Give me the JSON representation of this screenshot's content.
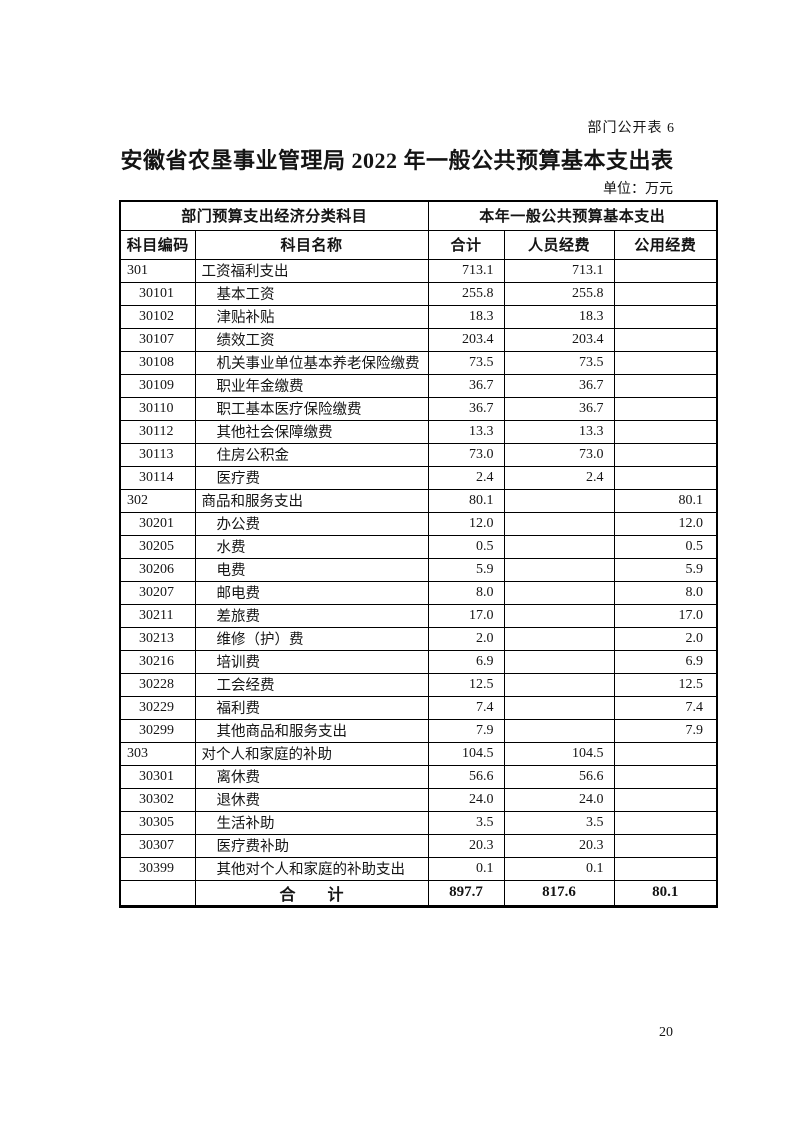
{
  "page": {
    "doc_label": "部门公开表 6",
    "title": "安徽省农垦事业管理局 2022 年一般公共预算基本支出表",
    "unit_label": "单位：万元",
    "page_number": "20"
  },
  "table": {
    "header": {
      "group_classification": "部门预算支出经济分类科目",
      "group_budget": "本年一般公共预算基本支出",
      "col_code": "科目编码",
      "col_name": "科目名称",
      "col_total": "合计",
      "col_personnel": "人员经费",
      "col_public": "公用经费"
    },
    "rows": [
      {
        "code": "301",
        "name": "工资福利支出",
        "total": "713.1",
        "personnel": "713.1",
        "public": "",
        "level": 1
      },
      {
        "code": "30101",
        "name": "基本工资",
        "total": "255.8",
        "personnel": "255.8",
        "public": "",
        "level": 2
      },
      {
        "code": "30102",
        "name": "津贴补贴",
        "total": "18.3",
        "personnel": "18.3",
        "public": "",
        "level": 2
      },
      {
        "code": "30107",
        "name": "绩效工资",
        "total": "203.4",
        "personnel": "203.4",
        "public": "",
        "level": 2
      },
      {
        "code": "30108",
        "name": "机关事业单位基本养老保险缴费",
        "total": "73.5",
        "personnel": "73.5",
        "public": "",
        "level": 2
      },
      {
        "code": "30109",
        "name": "职业年金缴费",
        "total": "36.7",
        "personnel": "36.7",
        "public": "",
        "level": 2
      },
      {
        "code": "30110",
        "name": "职工基本医疗保险缴费",
        "total": "36.7",
        "personnel": "36.7",
        "public": "",
        "level": 2
      },
      {
        "code": "30112",
        "name": "其他社会保障缴费",
        "total": "13.3",
        "personnel": "13.3",
        "public": "",
        "level": 2
      },
      {
        "code": "30113",
        "name": "住房公积金",
        "total": "73.0",
        "personnel": "73.0",
        "public": "",
        "level": 2
      },
      {
        "code": "30114",
        "name": "医疗费",
        "total": "2.4",
        "personnel": "2.4",
        "public": "",
        "level": 2
      },
      {
        "code": "302",
        "name": "商品和服务支出",
        "total": "80.1",
        "personnel": "",
        "public": "80.1",
        "level": 1
      },
      {
        "code": "30201",
        "name": "办公费",
        "total": "12.0",
        "personnel": "",
        "public": "12.0",
        "level": 2
      },
      {
        "code": "30205",
        "name": "水费",
        "total": "0.5",
        "personnel": "",
        "public": "0.5",
        "level": 2
      },
      {
        "code": "30206",
        "name": "电费",
        "total": "5.9",
        "personnel": "",
        "public": "5.9",
        "level": 2
      },
      {
        "code": "30207",
        "name": "邮电费",
        "total": "8.0",
        "personnel": "",
        "public": "8.0",
        "level": 2
      },
      {
        "code": "30211",
        "name": "差旅费",
        "total": "17.0",
        "personnel": "",
        "public": "17.0",
        "level": 2
      },
      {
        "code": "30213",
        "name": "维修（护）费",
        "total": "2.0",
        "personnel": "",
        "public": "2.0",
        "level": 2
      },
      {
        "code": "30216",
        "name": "培训费",
        "total": "6.9",
        "personnel": "",
        "public": "6.9",
        "level": 2
      },
      {
        "code": "30228",
        "name": "工会经费",
        "total": "12.5",
        "personnel": "",
        "public": "12.5",
        "level": 2
      },
      {
        "code": "30229",
        "name": "福利费",
        "total": "7.4",
        "personnel": "",
        "public": "7.4",
        "level": 2
      },
      {
        "code": "30299",
        "name": "其他商品和服务支出",
        "total": "7.9",
        "personnel": "",
        "public": "7.9",
        "level": 2
      },
      {
        "code": "303",
        "name": "对个人和家庭的补助",
        "total": "104.5",
        "personnel": "104.5",
        "public": "",
        "level": 1
      },
      {
        "code": "30301",
        "name": "离休费",
        "total": "56.6",
        "personnel": "56.6",
        "public": "",
        "level": 2
      },
      {
        "code": "30302",
        "name": "退休费",
        "total": "24.0",
        "personnel": "24.0",
        "public": "",
        "level": 2
      },
      {
        "code": "30305",
        "name": "生活补助",
        "total": "3.5",
        "personnel": "3.5",
        "public": "",
        "level": 2
      },
      {
        "code": "30307",
        "name": "医疗费补助",
        "total": "20.3",
        "personnel": "20.3",
        "public": "",
        "level": 2
      },
      {
        "code": "30399",
        "name": "其他对个人和家庭的补助支出",
        "total": "0.1",
        "personnel": "0.1",
        "public": "",
        "level": 2
      }
    ],
    "total_row": {
      "label": "合　　计",
      "total": "897.7",
      "personnel": "817.6",
      "public": "80.1"
    }
  }
}
